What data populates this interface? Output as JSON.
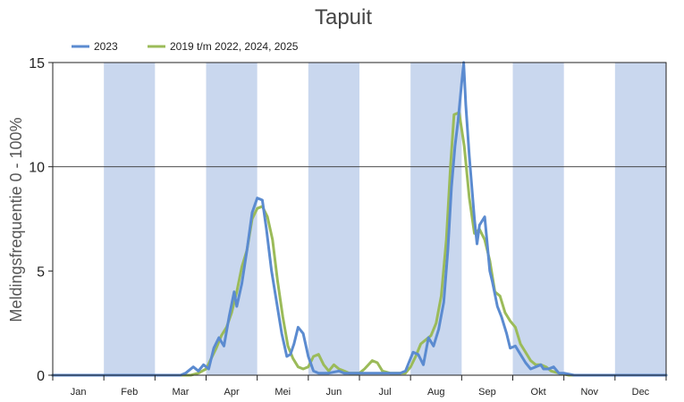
{
  "chart_data": {
    "type": "line",
    "title": "Tapuit",
    "ylabel": "Meldingsfrequentie 0 - 100%",
    "xlabel": "",
    "ylim": [
      0,
      15
    ],
    "yticks": [
      0,
      5,
      10,
      15
    ],
    "grid": "horizontal line at 10",
    "legend": "top-left",
    "months": [
      "Jan",
      "Feb",
      "Mar",
      "Apr",
      "Mei",
      "Jun",
      "Jul",
      "Aug",
      "Sep",
      "Okt",
      "Nov",
      "Dec"
    ],
    "band_color": "#c9d7ee",
    "series": [
      {
        "name": "2023",
        "color": "#5b8bd0",
        "points": [
          [
            0,
            0
          ],
          [
            2.5,
            0
          ],
          [
            2.6,
            0.1
          ],
          [
            2.75,
            0.4
          ],
          [
            2.85,
            0.2
          ],
          [
            2.95,
            0.5
          ],
          [
            3.05,
            0.3
          ],
          [
            3.15,
            1.3
          ],
          [
            3.25,
            1.8
          ],
          [
            3.35,
            1.4
          ],
          [
            3.45,
            2.8
          ],
          [
            3.55,
            4.0
          ],
          [
            3.6,
            3.3
          ],
          [
            3.7,
            4.4
          ],
          [
            3.8,
            6.0
          ],
          [
            3.9,
            7.8
          ],
          [
            4.0,
            8.5
          ],
          [
            4.1,
            8.4
          ],
          [
            4.18,
            7.0
          ],
          [
            4.28,
            5.0
          ],
          [
            4.38,
            3.5
          ],
          [
            4.48,
            2.0
          ],
          [
            4.58,
            0.9
          ],
          [
            4.65,
            1.0
          ],
          [
            4.72,
            1.5
          ],
          [
            4.8,
            2.3
          ],
          [
            4.9,
            2.0
          ],
          [
            5.0,
            0.9
          ],
          [
            5.1,
            0.2
          ],
          [
            5.2,
            0.1
          ],
          [
            5.3,
            0.1
          ],
          [
            5.4,
            0.1
          ],
          [
            5.6,
            0.2
          ],
          [
            5.7,
            0.1
          ],
          [
            5.8,
            0.1
          ],
          [
            6.0,
            0.1
          ],
          [
            6.8,
            0.1
          ],
          [
            6.9,
            0.2
          ],
          [
            7.05,
            1.1
          ],
          [
            7.15,
            1.0
          ],
          [
            7.25,
            0.5
          ],
          [
            7.35,
            1.8
          ],
          [
            7.45,
            1.4
          ],
          [
            7.55,
            2.2
          ],
          [
            7.65,
            3.5
          ],
          [
            7.73,
            6.0
          ],
          [
            7.8,
            9.0
          ],
          [
            7.87,
            11.0
          ],
          [
            7.93,
            12.2
          ],
          [
            8.0,
            14.0
          ],
          [
            8.04,
            15.0
          ],
          [
            8.08,
            13.0
          ],
          [
            8.15,
            10.5
          ],
          [
            8.25,
            7.5
          ],
          [
            8.3,
            6.3
          ],
          [
            8.35,
            7.2
          ],
          [
            8.45,
            7.6
          ],
          [
            8.55,
            5.0
          ],
          [
            8.6,
            4.5
          ],
          [
            8.7,
            3.3
          ],
          [
            8.78,
            2.8
          ],
          [
            8.88,
            2.0
          ],
          [
            8.95,
            1.3
          ],
          [
            9.05,
            1.4
          ],
          [
            9.15,
            1.0
          ],
          [
            9.25,
            0.6
          ],
          [
            9.35,
            0.3
          ],
          [
            9.45,
            0.4
          ],
          [
            9.55,
            0.5
          ],
          [
            9.6,
            0.3
          ],
          [
            9.7,
            0.3
          ],
          [
            9.8,
            0.4
          ],
          [
            9.9,
            0.1
          ],
          [
            10.0,
            0.1
          ],
          [
            10.2,
            0
          ],
          [
            12,
            0
          ]
        ]
      },
      {
        "name": "2019 t/m 2022, 2024, 2025",
        "color": "#9bbb59",
        "points": [
          [
            0,
            0
          ],
          [
            2.7,
            0
          ],
          [
            2.85,
            0.1
          ],
          [
            3.0,
            0.3
          ],
          [
            3.1,
            0.8
          ],
          [
            3.2,
            1.3
          ],
          [
            3.3,
            1.9
          ],
          [
            3.4,
            2.3
          ],
          [
            3.5,
            3.0
          ],
          [
            3.6,
            4.0
          ],
          [
            3.7,
            5.2
          ],
          [
            3.8,
            6.0
          ],
          [
            3.9,
            7.5
          ],
          [
            4.0,
            8.0
          ],
          [
            4.1,
            8.1
          ],
          [
            4.2,
            7.6
          ],
          [
            4.3,
            6.5
          ],
          [
            4.4,
            4.5
          ],
          [
            4.5,
            2.8
          ],
          [
            4.6,
            1.4
          ],
          [
            4.7,
            0.8
          ],
          [
            4.8,
            0.4
          ],
          [
            4.9,
            0.3
          ],
          [
            5.0,
            0.4
          ],
          [
            5.1,
            0.9
          ],
          [
            5.2,
            1.0
          ],
          [
            5.3,
            0.5
          ],
          [
            5.4,
            0.2
          ],
          [
            5.5,
            0.5
          ],
          [
            5.6,
            0.3
          ],
          [
            5.7,
            0.2
          ],
          [
            5.8,
            0.1
          ],
          [
            6.0,
            0.1
          ],
          [
            6.1,
            0.3
          ],
          [
            6.25,
            0.7
          ],
          [
            6.35,
            0.6
          ],
          [
            6.45,
            0.2
          ],
          [
            6.6,
            0.1
          ],
          [
            6.9,
            0.1
          ],
          [
            7.0,
            0.4
          ],
          [
            7.1,
            0.9
          ],
          [
            7.2,
            1.5
          ],
          [
            7.3,
            1.7
          ],
          [
            7.4,
            1.9
          ],
          [
            7.5,
            2.5
          ],
          [
            7.6,
            3.8
          ],
          [
            7.7,
            6.5
          ],
          [
            7.78,
            10.0
          ],
          [
            7.85,
            12.5
          ],
          [
            7.95,
            12.6
          ],
          [
            8.05,
            11.0
          ],
          [
            8.15,
            8.5
          ],
          [
            8.25,
            6.8
          ],
          [
            8.35,
            7.0
          ],
          [
            8.45,
            6.5
          ],
          [
            8.55,
            5.5
          ],
          [
            8.65,
            4.0
          ],
          [
            8.75,
            3.8
          ],
          [
            8.85,
            3.0
          ],
          [
            8.95,
            2.6
          ],
          [
            9.05,
            2.3
          ],
          [
            9.15,
            1.5
          ],
          [
            9.25,
            1.1
          ],
          [
            9.35,
            0.7
          ],
          [
            9.45,
            0.5
          ],
          [
            9.55,
            0.5
          ],
          [
            9.65,
            0.4
          ],
          [
            9.75,
            0.2
          ],
          [
            9.9,
            0.1
          ],
          [
            10.1,
            0
          ],
          [
            12,
            0
          ]
        ]
      }
    ]
  }
}
